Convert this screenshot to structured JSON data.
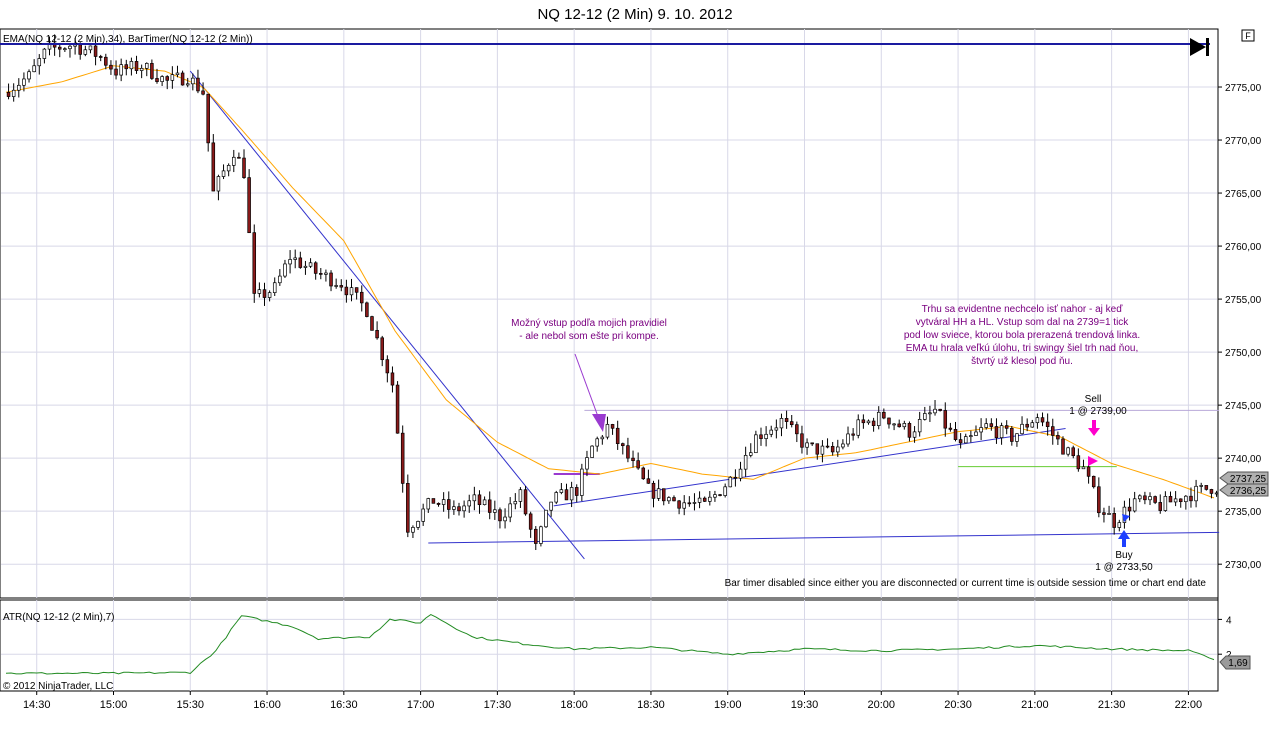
{
  "window": {
    "title": "NQ 12-12 (2 Min)  9. 10. 2012",
    "f_button": "F"
  },
  "price_panel": {
    "indicator_label": "EMA(NQ 12-12 (2 Min),34), BarTimer(NQ 12-12 (2 Min))",
    "y_ticks": [
      "2775,00",
      "2770,00",
      "2765,00",
      "2760,00",
      "2755,00",
      "2750,00",
      "2745,00",
      "2740,00",
      "2735,00",
      "2730,00"
    ],
    "last_price": "2737,25",
    "ema_value": "2736,25",
    "note_left": [
      "Možný vstup podľa mojich pravidiel",
      " - ale nebol som ešte pri kompe."
    ],
    "note_right": [
      "Trhu sa evidentne nechcelo isť nahor - aj keď",
      "vytváral HH a HL. Vstup som dal na 2739=1 tick",
      "pod low sviece, ktorou bola prerazená trendová linka.",
      "EMA tu hrala veľkú úlohu, tri swingy šiel trh nad ňou,",
      "štvrtý už klesol pod ňu."
    ],
    "sell_label": "Sell",
    "sell_detail": "1 @ 2739,00",
    "buy_label": "Buy",
    "buy_detail": "1 @ 2733,50",
    "bar_timer_msg": "Bar timer disabled since either you are disconnected or current time is outside session time or chart end date"
  },
  "atr_panel": {
    "label": "ATR(NQ 12-12 (2 Min),7)",
    "y_ticks": [
      "4",
      "2"
    ],
    "current": "1,69",
    "copyright": "© 2012 NinjaTrader, LLC"
  },
  "x_axis": {
    "ticks": [
      "14:30",
      "15:00",
      "15:30",
      "16:00",
      "16:30",
      "17:00",
      "17:30",
      "18:00",
      "18:30",
      "19:00",
      "19:30",
      "20:00",
      "20:30",
      "21:00",
      "21:30",
      "22:00"
    ]
  },
  "colors": {
    "candle_up": "#ffffff",
    "candle_down": "#8b1a1a",
    "ema": "#ffa500",
    "atr": "#228b22",
    "trendline": "#3333cc",
    "note_purple": "#7a0080",
    "grid": "#d8d8e8"
  },
  "chart_data": {
    "type": "candlestick",
    "title": "NQ 12-12 (2 Min)  9. 10. 2012",
    "ylim": [
      2727,
      2780
    ],
    "atr_ylim": [
      0,
      5
    ],
    "x_start": "14:18",
    "x_end": "22:10",
    "series": [
      {
        "name": "price",
        "anchors": [
          [
            "14:18",
            2774.5
          ],
          [
            "14:28",
            2776.0
          ],
          [
            "14:35",
            2778.5
          ],
          [
            "14:45",
            2779.0
          ],
          [
            "14:55",
            2778.0
          ],
          [
            "15:02",
            2776.5
          ],
          [
            "15:12",
            2777.0
          ],
          [
            "15:22",
            2775.5
          ],
          [
            "15:30",
            2776.0
          ],
          [
            "15:36",
            2774.5
          ],
          [
            "15:40",
            2765.0
          ],
          [
            "15:48",
            2769.0
          ],
          [
            "15:52",
            2767.0
          ],
          [
            "15:56",
            2755.0
          ],
          [
            "16:04",
            2756.0
          ],
          [
            "16:10",
            2759.0
          ],
          [
            "16:20",
            2757.5
          ],
          [
            "16:30",
            2756.5
          ],
          [
            "16:40",
            2754.0
          ],
          [
            "16:50",
            2747.0
          ],
          [
            "16:56",
            2733.5
          ],
          [
            "17:06",
            2736.0
          ],
          [
            "17:14",
            2735.0
          ],
          [
            "17:22",
            2736.0
          ],
          [
            "17:32",
            2734.5
          ],
          [
            "17:40",
            2736.5
          ],
          [
            "17:46",
            2731.5
          ],
          [
            "17:52",
            2736.0
          ],
          [
            "18:02",
            2737.0
          ],
          [
            "18:08",
            2741.0
          ],
          [
            "18:14",
            2743.0
          ],
          [
            "18:22",
            2740.0
          ],
          [
            "18:30",
            2737.0
          ],
          [
            "18:40",
            2736.0
          ],
          [
            "18:52",
            2735.5
          ],
          [
            "19:02",
            2738.0
          ],
          [
            "19:12",
            2742.0
          ],
          [
            "19:22",
            2743.5
          ],
          [
            "19:32",
            2741.0
          ],
          [
            "19:42",
            2740.5
          ],
          [
            "19:52",
            2743.0
          ],
          [
            "20:02",
            2744.0
          ],
          [
            "20:12",
            2742.5
          ],
          [
            "20:22",
            2744.5
          ],
          [
            "20:32",
            2741.0
          ],
          [
            "20:42",
            2743.0
          ],
          [
            "20:52",
            2742.0
          ],
          [
            "21:02",
            2744.0
          ],
          [
            "21:12",
            2741.0
          ],
          [
            "21:20",
            2739.0
          ],
          [
            "21:26",
            2735.5
          ],
          [
            "21:32",
            2734.0
          ],
          [
            "21:40",
            2736.0
          ],
          [
            "21:50",
            2735.5
          ],
          [
            "22:00",
            2736.5
          ],
          [
            "22:10",
            2737.25
          ]
        ]
      },
      {
        "name": "EMA(34)",
        "anchors": [
          [
            "14:18",
            2774.5
          ],
          [
            "14:40",
            2775.5
          ],
          [
            "15:00",
            2777.0
          ],
          [
            "15:20",
            2776.5
          ],
          [
            "15:35",
            2775.0
          ],
          [
            "15:50",
            2771.0
          ],
          [
            "16:10",
            2765.5
          ],
          [
            "16:30",
            2760.5
          ],
          [
            "16:50",
            2752.0
          ],
          [
            "17:10",
            2745.5
          ],
          [
            "17:30",
            2741.5
          ],
          [
            "17:50",
            2739.0
          ],
          [
            "18:10",
            2738.5
          ],
          [
            "18:30",
            2739.5
          ],
          [
            "18:50",
            2738.5
          ],
          [
            "19:10",
            2738.0
          ],
          [
            "19:30",
            2740.0
          ],
          [
            "19:50",
            2740.5
          ],
          [
            "20:10",
            2741.5
          ],
          [
            "20:30",
            2742.5
          ],
          [
            "20:50",
            2743.0
          ],
          [
            "21:10",
            2742.0
          ],
          [
            "21:30",
            2739.5
          ],
          [
            "21:50",
            2738.0
          ],
          [
            "22:10",
            2736.25
          ]
        ]
      },
      {
        "name": "ATR(7)",
        "anchors": [
          [
            "14:18",
            0.9
          ],
          [
            "15:00",
            0.9
          ],
          [
            "15:30",
            0.95
          ],
          [
            "15:40",
            2.2
          ],
          [
            "15:50",
            4.2
          ],
          [
            "16:10",
            3.6
          ],
          [
            "16:20",
            2.9
          ],
          [
            "16:40",
            3.0
          ],
          [
            "16:48",
            4.0
          ],
          [
            "17:00",
            3.8
          ],
          [
            "17:04",
            4.3
          ],
          [
            "17:20",
            3.0
          ],
          [
            "17:40",
            2.6
          ],
          [
            "18:00",
            2.3
          ],
          [
            "18:30",
            2.4
          ],
          [
            "19:00",
            2.0
          ],
          [
            "19:30",
            2.3
          ],
          [
            "20:00",
            2.2
          ],
          [
            "20:30",
            2.3
          ],
          [
            "21:00",
            2.5
          ],
          [
            "21:30",
            2.3
          ],
          [
            "22:00",
            2.2
          ],
          [
            "22:10",
            1.69
          ]
        ]
      }
    ],
    "lines": [
      {
        "name": "downtrend",
        "from": [
          "15:30",
          2776.5
        ],
        "to": [
          "18:04",
          2730.5
        ]
      },
      {
        "name": "support",
        "from": [
          "17:03",
          2732.0
        ],
        "to": [
          "22:12",
          2733.0
        ]
      },
      {
        "name": "uptrend",
        "from": [
          "17:52",
          2735.5
        ],
        "to": [
          "21:12",
          2742.8
        ]
      },
      {
        "name": "resistance",
        "from": [
          "18:04",
          2744.5
        ],
        "to": [
          "22:12",
          2744.5
        ]
      },
      {
        "name": "entry-level",
        "from": [
          "20:30",
          2739.2
        ],
        "to": [
          "21:32",
          2739.2
        ]
      },
      {
        "name": "signal-level",
        "from": [
          "17:52",
          2738.5
        ],
        "to": [
          "18:10",
          2738.5
        ]
      }
    ]
  }
}
